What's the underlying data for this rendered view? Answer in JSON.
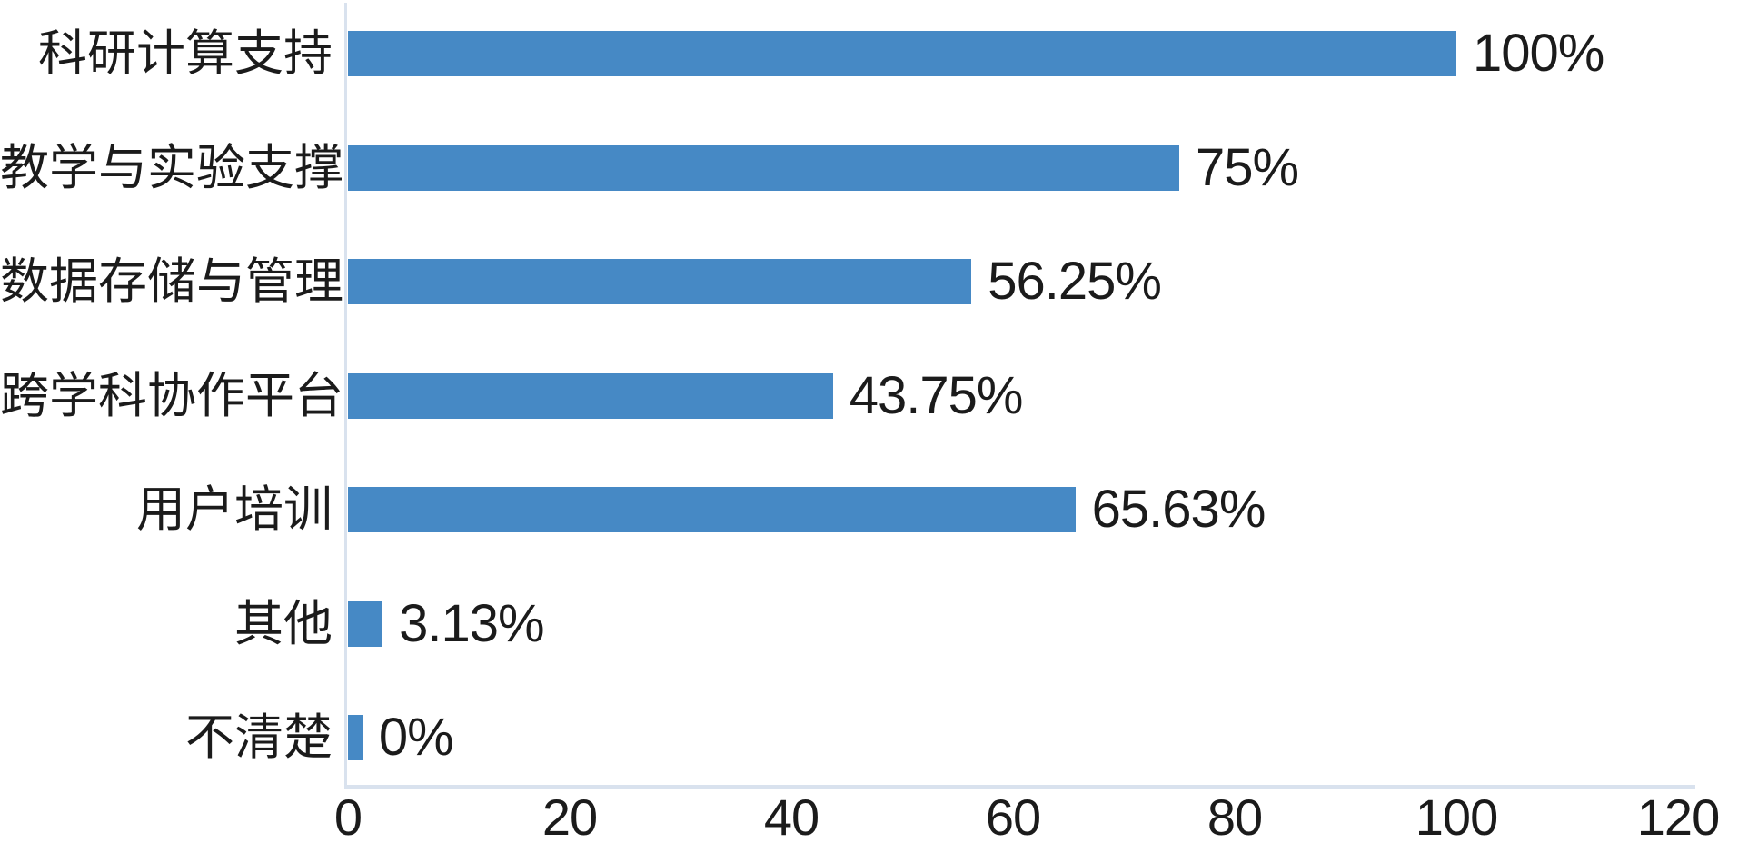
{
  "chart_data": {
    "type": "bar",
    "orientation": "horizontal",
    "title": "",
    "xlabel": "",
    "ylabel": "",
    "categories": [
      "科研计算支持",
      "教学与实验支撑",
      "数据存储与管理",
      "跨学科协作平台",
      "用户培训",
      "其他",
      "不清楚"
    ],
    "values": [
      100,
      75,
      56.25,
      43.75,
      65.63,
      3.13,
      0
    ],
    "value_labels": [
      "100%",
      "75%",
      "56.25%",
      "43.75%",
      "65.63%",
      "3.13%",
      "0%"
    ],
    "x_ticks": [
      "0",
      "20",
      "40",
      "60",
      "80",
      "100",
      "120"
    ],
    "x_tick_values": [
      0,
      20,
      40,
      60,
      80,
      100,
      120
    ],
    "xlim": [
      0,
      120
    ],
    "grid": false,
    "legend_position": "none",
    "colors": {
      "bar": "#4689c5",
      "axis_line": "#d9e2ee",
      "text": "#1b1b1b",
      "background": "#ffffff"
    }
  }
}
